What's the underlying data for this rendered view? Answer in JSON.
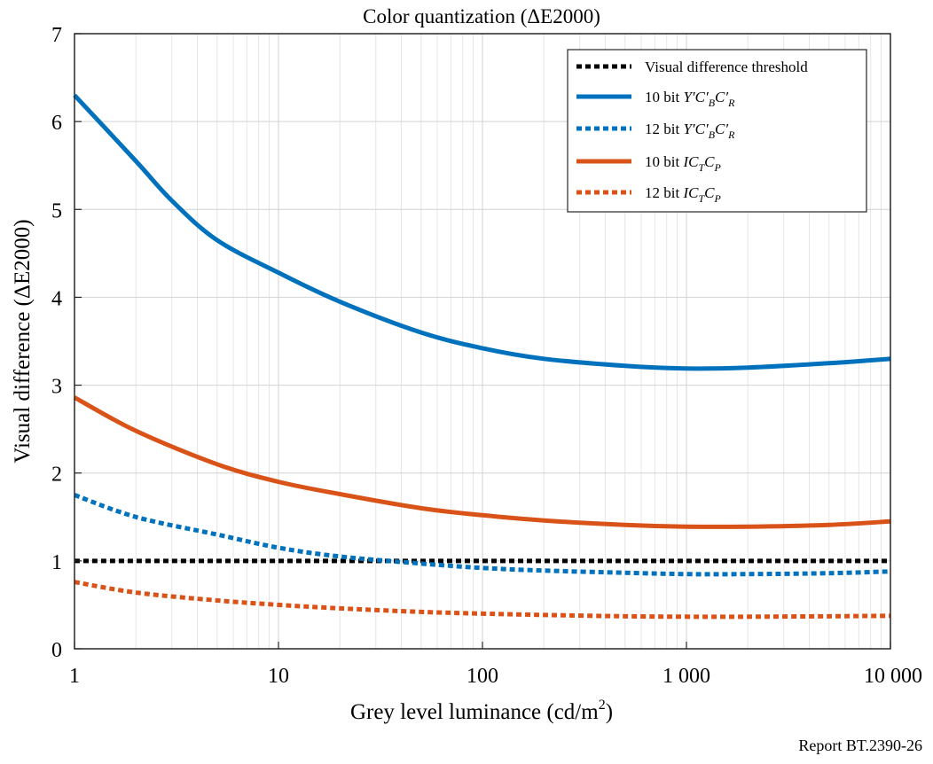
{
  "report_label": "Report BT.2390-26",
  "chart_data": {
    "type": "line",
    "title": "Color quantization (ΔE2000)",
    "xlabel": "Grey level luminance (cd/m",
    "xlabel_sup": "2",
    "xlabel_suffix": ")",
    "ylabel": "Visual difference (ΔE2000)",
    "xscale": "log",
    "xlim": [
      1,
      10000
    ],
    "ylim": [
      0,
      7
    ],
    "x_ticks": [
      1,
      10,
      100,
      1000,
      10000
    ],
    "x_tick_labels": [
      "1",
      "10",
      "100",
      "1 000",
      "10 000"
    ],
    "y_ticks": [
      0,
      1,
      2,
      3,
      4,
      5,
      6,
      7
    ],
    "y_tick_labels": [
      "0",
      "1",
      "2",
      "3",
      "4",
      "5",
      "6",
      "7"
    ],
    "grid": true,
    "legend_position": "top-right",
    "series": [
      {
        "name": "Visual difference threshold",
        "color": "#000000",
        "style": "dotted",
        "x": [
          1,
          10,
          100,
          1000,
          10000
        ],
        "y": [
          1.0,
          1.0,
          1.0,
          1.0,
          1.0
        ]
      },
      {
        "name": "10 bit Y′C′BC′R",
        "color": "#0072bd",
        "style": "solid",
        "x": [
          1,
          2,
          3,
          5,
          10,
          20,
          50,
          100,
          200,
          500,
          1000,
          2000,
          5000,
          10000
        ],
        "y": [
          6.3,
          5.55,
          5.1,
          4.65,
          4.28,
          3.95,
          3.6,
          3.42,
          3.3,
          3.22,
          3.19,
          3.2,
          3.25,
          3.3
        ]
      },
      {
        "name": "12 bit Y′C′BC′R",
        "color": "#0072bd",
        "style": "dotted",
        "x": [
          1,
          2,
          5,
          10,
          20,
          50,
          100,
          200,
          500,
          1000,
          2000,
          5000,
          10000
        ],
        "y": [
          1.75,
          1.5,
          1.3,
          1.15,
          1.05,
          0.97,
          0.92,
          0.89,
          0.865,
          0.85,
          0.85,
          0.86,
          0.88
        ]
      },
      {
        "name": "10 bit ICTCP",
        "color": "#d95319",
        "style": "solid",
        "x": [
          1,
          2,
          5,
          10,
          20,
          50,
          100,
          200,
          500,
          1000,
          2000,
          5000,
          10000
        ],
        "y": [
          2.86,
          2.48,
          2.1,
          1.9,
          1.76,
          1.6,
          1.52,
          1.46,
          1.41,
          1.39,
          1.39,
          1.41,
          1.45
        ]
      },
      {
        "name": "12 bit ICTCP",
        "color": "#d95319",
        "style": "dotted",
        "x": [
          1,
          2,
          5,
          10,
          20,
          50,
          100,
          200,
          500,
          1000,
          2000,
          5000,
          10000
        ],
        "y": [
          0.76,
          0.64,
          0.55,
          0.5,
          0.46,
          0.42,
          0.4,
          0.385,
          0.37,
          0.365,
          0.365,
          0.37,
          0.375
        ]
      }
    ],
    "legend_entries": [
      {
        "main": "Visual difference threshold",
        "parts": [
          {
            "t": "Visual difference threshold"
          }
        ]
      },
      {
        "main": "10 bit",
        "parts": [
          {
            "t": "10 bit "
          },
          {
            "t": "Y′C′",
            "i": true
          },
          {
            "t": "B",
            "i": true,
            "sub": true
          },
          {
            "t": "C′",
            "i": true
          },
          {
            "t": "R",
            "i": true,
            "sub": true
          }
        ]
      },
      {
        "main": "12 bit",
        "parts": [
          {
            "t": "12 bit "
          },
          {
            "t": "Y′C′",
            "i": true
          },
          {
            "t": "B",
            "i": true,
            "sub": true
          },
          {
            "t": "C′",
            "i": true
          },
          {
            "t": "R",
            "i": true,
            "sub": true
          }
        ]
      },
      {
        "main": "10 bit",
        "parts": [
          {
            "t": "10 bit "
          },
          {
            "t": "IC",
            "i": true
          },
          {
            "t": "T",
            "i": true,
            "sub": true
          },
          {
            "t": "C",
            "i": true
          },
          {
            "t": "P",
            "i": true,
            "sub": true
          }
        ]
      },
      {
        "main": "12 bit",
        "parts": [
          {
            "t": "12 bit "
          },
          {
            "t": "IC",
            "i": true
          },
          {
            "t": "T",
            "i": true,
            "sub": true
          },
          {
            "t": "C",
            "i": true
          },
          {
            "t": "P",
            "i": true,
            "sub": true
          }
        ]
      }
    ]
  }
}
